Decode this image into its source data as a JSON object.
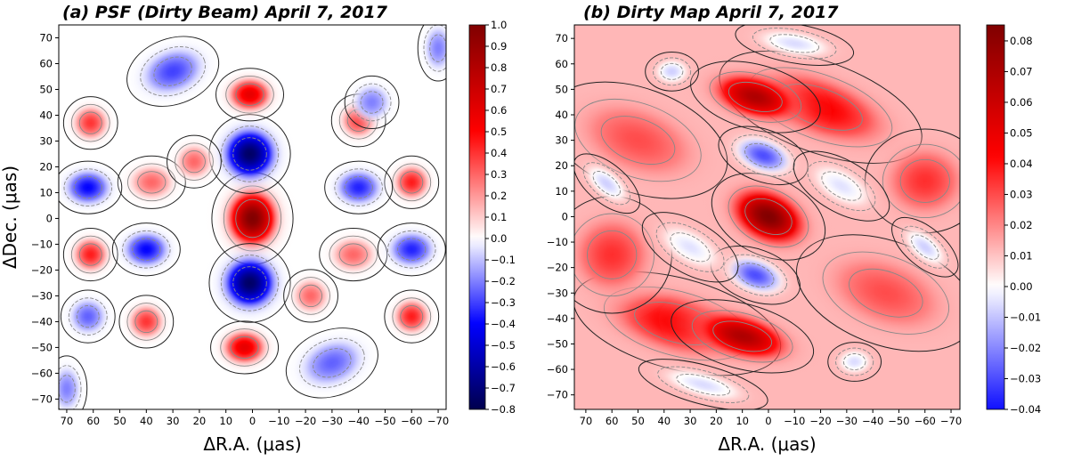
{
  "chart_data": [
    {
      "type": "contour",
      "title": "(a) PSF (Dirty Beam) April 7, 2017",
      "x_label": "ΔR.A. (μas)",
      "y_label": "ΔDec. (μas)",
      "xlim": [
        73,
        -73
      ],
      "ylim": [
        -74,
        75
      ],
      "xticks": [
        70,
        60,
        50,
        40,
        30,
        20,
        10,
        0,
        {
          "value": -10,
          "label": "−10"
        },
        {
          "value": -20,
          "label": "−20"
        },
        {
          "value": -30,
          "label": "−30"
        },
        {
          "value": -40,
          "label": "−40"
        },
        {
          "value": -50,
          "label": "−50"
        },
        {
          "value": -60,
          "label": "−60"
        },
        {
          "value": -70,
          "label": "−70"
        }
      ],
      "yticks": [
        {
          "value": -70,
          "label": "−70"
        },
        {
          "value": -60,
          "label": "−60"
        },
        {
          "value": -50,
          "label": "−50"
        },
        {
          "value": -40,
          "label": "−40"
        },
        {
          "value": -30,
          "label": "−30"
        },
        {
          "value": -20,
          "label": "−20"
        },
        {
          "value": -10,
          "label": "−10"
        },
        0,
        10,
        20,
        30,
        40,
        50,
        60,
        70
      ],
      "clim": [
        -0.8,
        1.0
      ],
      "norm": "two-slope",
      "cticks": [
        {
          "value": 1.0,
          "label": "1.0"
        },
        0.9,
        0.8,
        0.7,
        0.6,
        0.5,
        0.4,
        0.3,
        0.2,
        0.1,
        {
          "value": 0.0,
          "label": "0.0"
        },
        {
          "value": -0.1,
          "label": "−0.1"
        },
        {
          "value": -0.2,
          "label": "−0.2"
        },
        {
          "value": -0.3,
          "label": "−0.3"
        },
        {
          "value": -0.4,
          "label": "−0.4"
        },
        {
          "value": -0.5,
          "label": "−0.5"
        },
        {
          "value": -0.6,
          "label": "−0.6"
        },
        {
          "value": -0.7,
          "label": "−0.7"
        },
        {
          "value": -0.8,
          "label": "−0.8"
        }
      ],
      "background": 0.0,
      "peaks": [
        {
          "x": 0,
          "y": 0,
          "value": 1.0,
          "sx": 6,
          "sy": 7,
          "angle": 0
        },
        {
          "x": 1,
          "y": 25,
          "value": -0.75,
          "sx": 6,
          "sy": 6,
          "angle": 0
        },
        {
          "x": 1,
          "y": -25,
          "value": -0.75,
          "sx": 6,
          "sy": 6,
          "angle": 0
        },
        {
          "x": 1,
          "y": 48,
          "value": 0.6,
          "sx": 5,
          "sy": 4,
          "angle": 0
        },
        {
          "x": 3,
          "y": -50,
          "value": 0.6,
          "sx": 5,
          "sy": 4,
          "angle": 0
        },
        {
          "x": 61,
          "y": 37,
          "value": 0.4,
          "sx": 4,
          "sy": 4,
          "angle": 0
        },
        {
          "x": 40,
          "y": -40,
          "value": 0.4,
          "sx": 4,
          "sy": 4,
          "angle": 0
        },
        {
          "x": -40,
          "y": 38,
          "value": 0.4,
          "sx": 4,
          "sy": 4,
          "angle": 0
        },
        {
          "x": -60,
          "y": 14,
          "value": 0.45,
          "sx": 4,
          "sy": 4,
          "angle": 0
        },
        {
          "x": 61,
          "y": -14,
          "value": 0.45,
          "sx": 4,
          "sy": 4,
          "angle": 0
        },
        {
          "x": -60,
          "y": -38,
          "value": 0.45,
          "sx": 4,
          "sy": 4,
          "angle": 0
        },
        {
          "x": 38,
          "y": 14,
          "value": 0.3,
          "sx": 5,
          "sy": 4,
          "angle": 0
        },
        {
          "x": -38,
          "y": -14,
          "value": 0.3,
          "sx": 5,
          "sy": 4,
          "angle": 0
        },
        {
          "x": 22,
          "y": 22,
          "value": 0.3,
          "sx": 4,
          "sy": 4,
          "angle": 0
        },
        {
          "x": -22,
          "y": -30,
          "value": 0.3,
          "sx": 4,
          "sy": 4,
          "angle": 0
        },
        {
          "x": 62,
          "y": 12,
          "value": -0.4,
          "sx": 5,
          "sy": 4,
          "angle": 0
        },
        {
          "x": 40,
          "y": -12,
          "value": -0.4,
          "sx": 5,
          "sy": 4,
          "angle": 0
        },
        {
          "x": -40,
          "y": 12,
          "value": -0.35,
          "sx": 5,
          "sy": 4,
          "angle": 0
        },
        {
          "x": -60,
          "y": -12,
          "value": -0.35,
          "sx": 5,
          "sy": 4,
          "angle": 0
        },
        {
          "x": 30,
          "y": 57,
          "value": -0.3,
          "sx": 7,
          "sy": 5,
          "angle": 20
        },
        {
          "x": -30,
          "y": -56,
          "value": -0.25,
          "sx": 7,
          "sy": 5,
          "angle": 20
        },
        {
          "x": 62,
          "y": -38,
          "value": -0.25,
          "sx": 4,
          "sy": 4,
          "angle": 0
        },
        {
          "x": -45,
          "y": 45,
          "value": -0.2,
          "sx": 4,
          "sy": 4,
          "angle": 0
        },
        {
          "x": -70,
          "y": 66,
          "value": -0.2,
          "sx": 3,
          "sy": 5,
          "angle": 0
        },
        {
          "x": 70,
          "y": -66,
          "value": -0.2,
          "sx": 3,
          "sy": 5,
          "angle": 0
        }
      ]
    },
    {
      "type": "contour",
      "title": "(b) Dirty Map April 7, 2017",
      "x_label": "ΔR.A. (μas)",
      "xlim": [
        74.4,
        -73.4
      ],
      "ylim": [
        -75.7,
        75.3
      ],
      "xticks": [
        70,
        60,
        50,
        40,
        30,
        20,
        10,
        0,
        {
          "value": -10,
          "label": "−10"
        },
        {
          "value": -20,
          "label": "−20"
        },
        {
          "value": -30,
          "label": "−30"
        },
        {
          "value": -40,
          "label": "−40"
        },
        {
          "value": -50,
          "label": "−50"
        },
        {
          "value": -60,
          "label": "−60"
        },
        {
          "value": -70,
          "label": "−70"
        }
      ],
      "yticks": [
        {
          "value": -70,
          "label": "−70"
        },
        {
          "value": -60,
          "label": "−60"
        },
        {
          "value": -50,
          "label": "−50"
        },
        {
          "value": -40,
          "label": "−40"
        },
        {
          "value": -30,
          "label": "−30"
        },
        {
          "value": -20,
          "label": "−20"
        },
        {
          "value": -10,
          "label": "−10"
        },
        0,
        10,
        20,
        30,
        40,
        50,
        60,
        70
      ],
      "clim": [
        -0.04,
        0.0852
      ],
      "norm": "symmetric",
      "cticks": [
        0.08,
        0.07,
        0.06,
        0.05,
        0.04,
        0.03,
        0.02,
        0.01,
        {
          "value": 0.0,
          "label": "0.00"
        },
        {
          "value": -0.01,
          "label": "−0.01"
        },
        {
          "value": -0.02,
          "label": "−0.02"
        },
        {
          "value": -0.03,
          "label": "−0.03"
        },
        {
          "value": -0.04,
          "label": "−0.04"
        }
      ],
      "background": 0.012,
      "peaks": [
        {
          "x": 50,
          "y": 30,
          "value": 0.03,
          "sx": 14,
          "sy": 8,
          "angle": -20
        },
        {
          "x": -45,
          "y": -30,
          "value": 0.03,
          "sx": 14,
          "sy": 8,
          "angle": -20
        },
        {
          "x": 35,
          "y": -42,
          "value": 0.045,
          "sx": 16,
          "sy": 7,
          "angle": -15
        },
        {
          "x": -20,
          "y": 43,
          "value": 0.045,
          "sx": 16,
          "sy": 7,
          "angle": -20
        },
        {
          "x": 60,
          "y": -15,
          "value": 0.035,
          "sx": 9,
          "sy": 9,
          "angle": 0
        },
        {
          "x": -60,
          "y": 14,
          "value": 0.035,
          "sx": 9,
          "sy": 8,
          "angle": 0
        },
        {
          "x": 0,
          "y": 0,
          "value": 0.085,
          "sx": 9,
          "sy": 6,
          "angle": -25
        },
        {
          "x": 5,
          "y": 47,
          "value": 0.07,
          "sx": 10,
          "sy": 5,
          "angle": -15
        },
        {
          "x": 10,
          "y": -47,
          "value": 0.07,
          "sx": 11,
          "sy": 5,
          "angle": -15
        },
        {
          "x": 2,
          "y": 24,
          "value": -0.03,
          "sx": 7,
          "sy": 4,
          "angle": -20
        },
        {
          "x": 5,
          "y": -23,
          "value": -0.03,
          "sx": 7,
          "sy": 4,
          "angle": -20
        },
        {
          "x": -10,
          "y": 68,
          "value": -0.006,
          "sx": 9,
          "sy": 3,
          "angle": -10
        },
        {
          "x": 37,
          "y": 57,
          "value": -0.008,
          "sx": 4,
          "sy": 3,
          "angle": 0
        },
        {
          "x": 62,
          "y": 13,
          "value": -0.008,
          "sx": 6,
          "sy": 3,
          "angle": -40
        },
        {
          "x": -60,
          "y": -12,
          "value": -0.008,
          "sx": 6,
          "sy": 3,
          "angle": -40
        },
        {
          "x": -33,
          "y": -57,
          "value": -0.006,
          "sx": 4,
          "sy": 3,
          "angle": 0
        },
        {
          "x": 25,
          "y": -66,
          "value": -0.006,
          "sx": 10,
          "sy": 3,
          "angle": -15
        },
        {
          "x": -28,
          "y": 12,
          "value": -0.005,
          "sx": 8,
          "sy": 4,
          "angle": -30
        },
        {
          "x": 30,
          "y": -12,
          "value": -0.005,
          "sx": 8,
          "sy": 4,
          "angle": -30
        }
      ]
    }
  ]
}
